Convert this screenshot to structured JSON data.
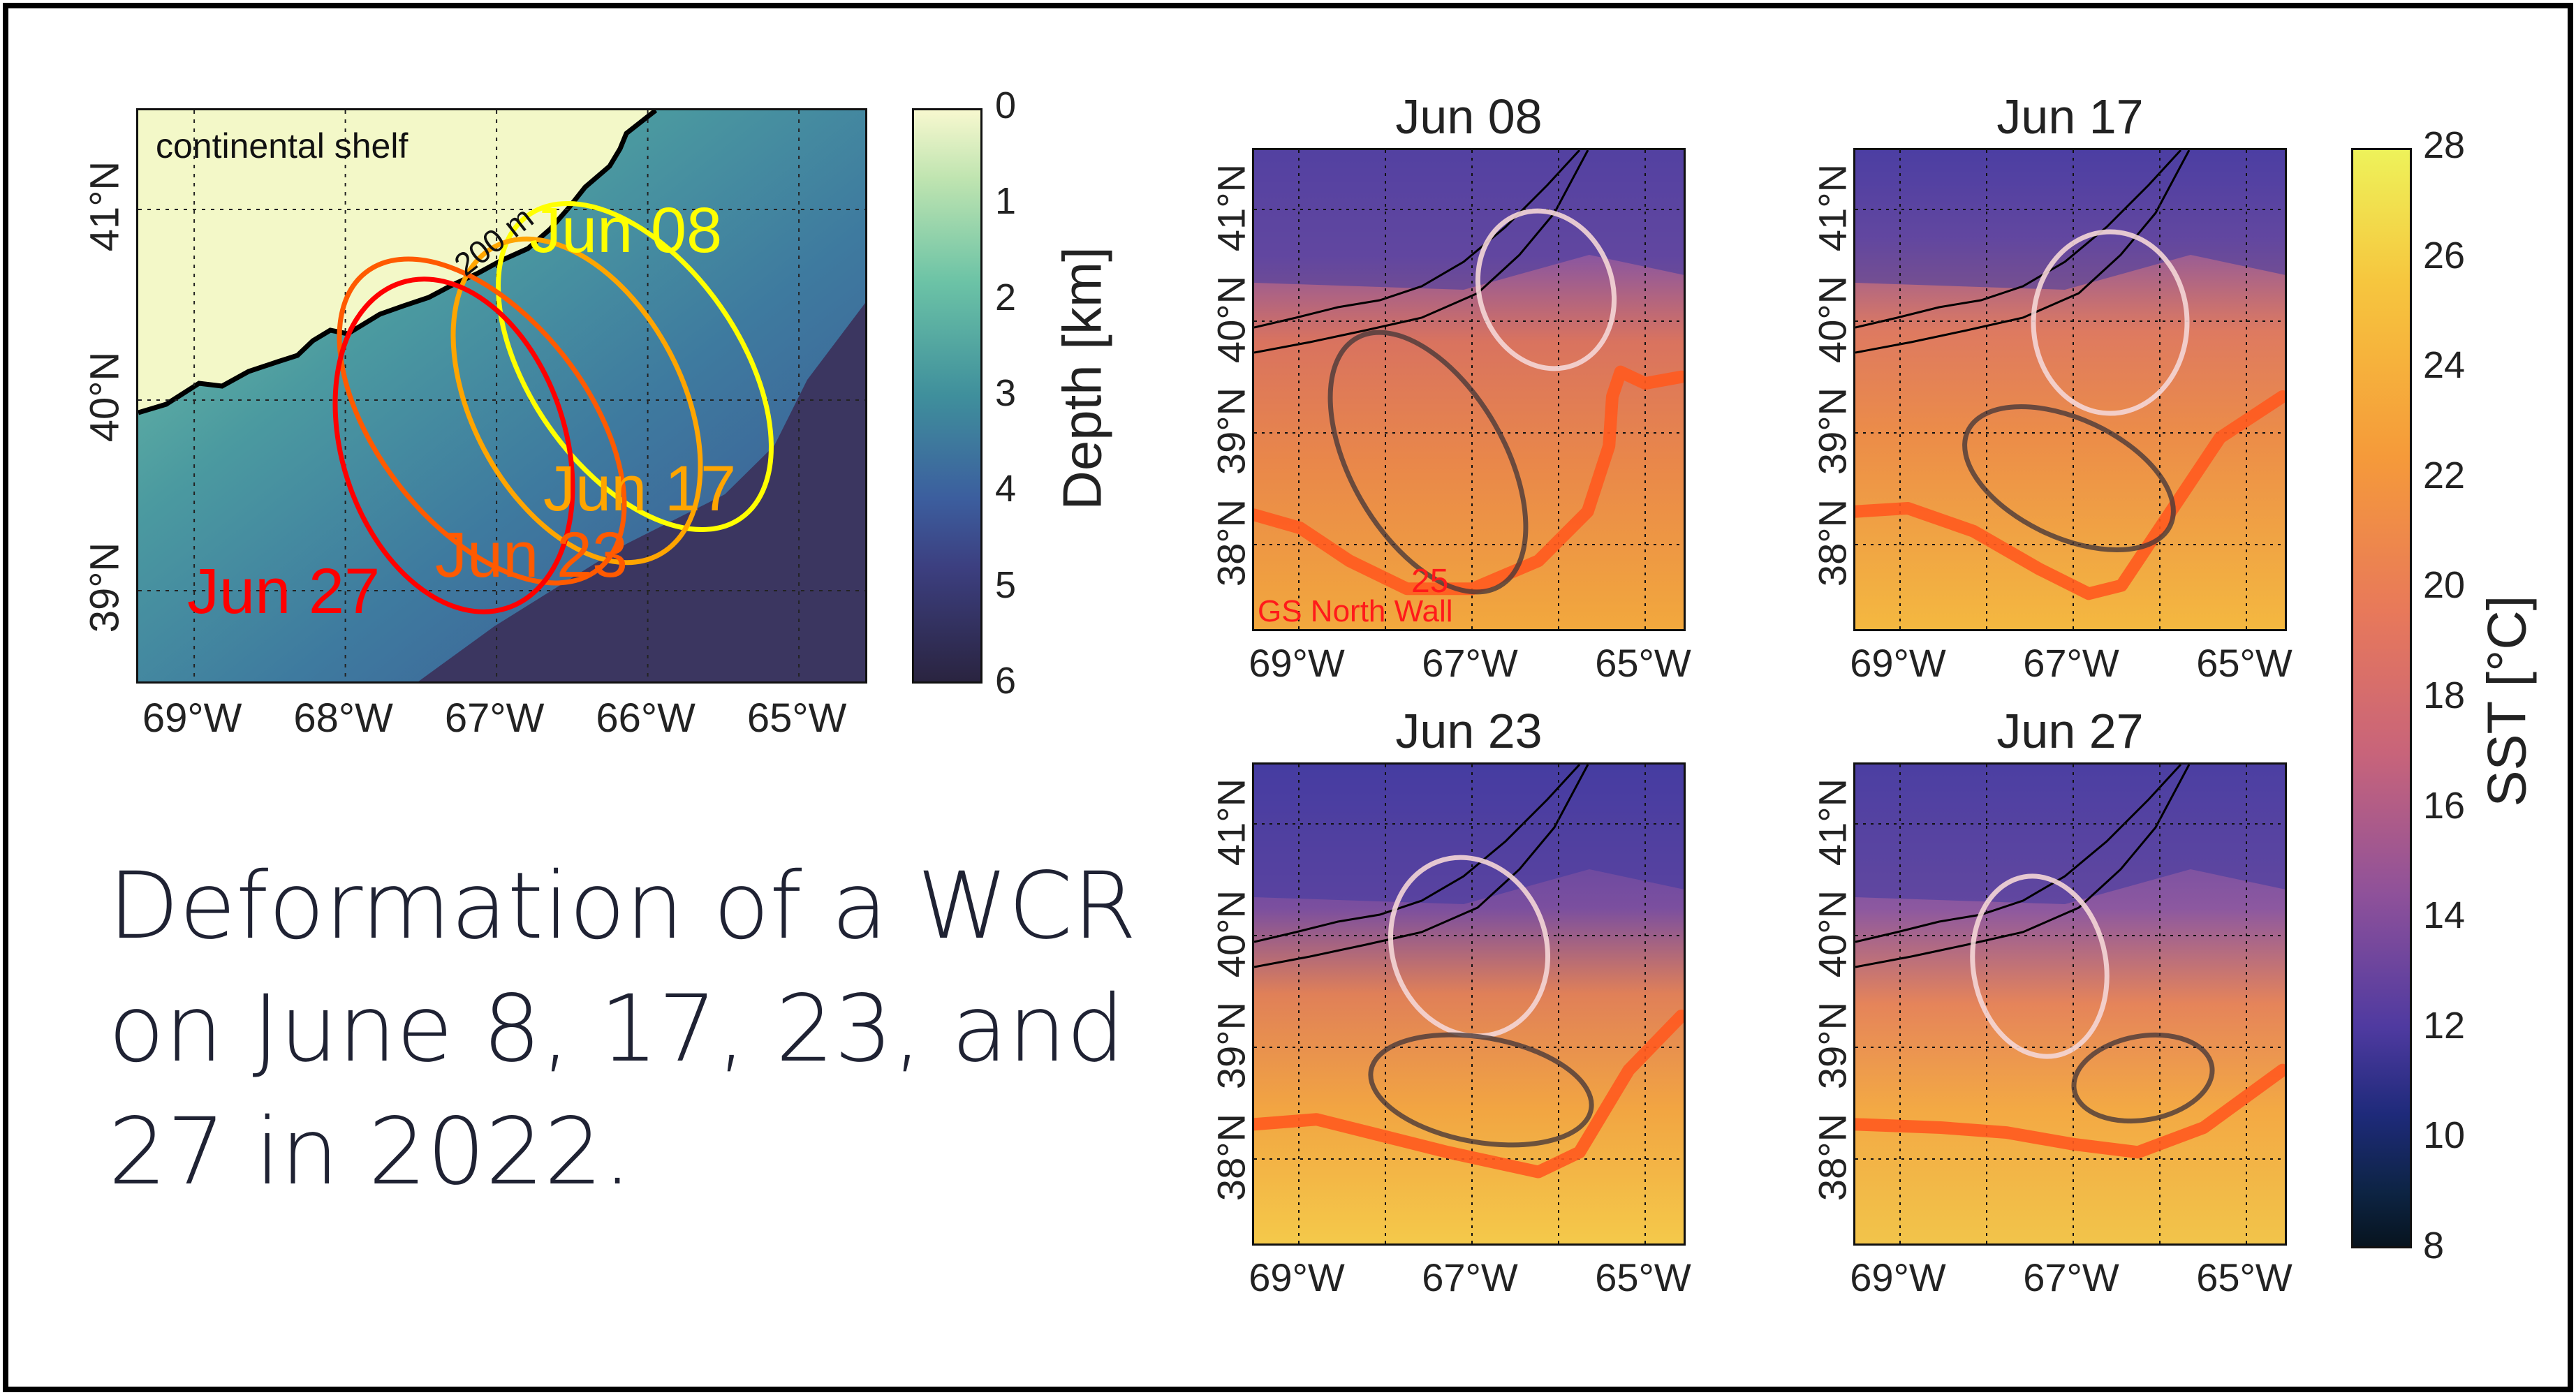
{
  "bathymetry_map": {
    "shelf_label": "continental shelf",
    "isobath_label": "200 m",
    "lon_ticks": [
      "69°W",
      "68°W",
      "67°W",
      "66°W",
      "65°W"
    ],
    "lat_ticks": [
      "41°N",
      "40°N",
      "39°N"
    ],
    "eddy_labels": [
      {
        "text": "Jun 08",
        "color": "#ffff00"
      },
      {
        "text": "Jun 17",
        "color": "#ffa500"
      },
      {
        "text": "Jun 23",
        "color": "#ff5a00"
      },
      {
        "text": "Jun 27",
        "color": "#ff0000"
      }
    ],
    "colorbar": {
      "label": "Depth [km]",
      "ticks": [
        "0",
        "1",
        "2",
        "3",
        "4",
        "5",
        "6"
      ]
    }
  },
  "caption": [
    "Deformation of a WCR",
    "on June 8, 17, 23, and",
    "27 in 2022."
  ],
  "sst_maps": {
    "panels": [
      {
        "title": "Jun 08"
      },
      {
        "title": "Jun 17"
      },
      {
        "title": "Jun 23"
      },
      {
        "title": "Jun 27"
      }
    ],
    "lon_ticks": [
      "69°W",
      "67°W",
      "65°W"
    ],
    "lat_ticks": [
      "41°N",
      "40°N",
      "39°N",
      "38°N"
    ],
    "isotherm_label": "25",
    "front_label": "GS North Wall",
    "front_color": "#ff5a1f",
    "colorbar": {
      "label": "SST [°C]",
      "ticks": [
        "28",
        "26",
        "24",
        "22",
        "20",
        "18",
        "16",
        "14",
        "12",
        "10",
        "8"
      ]
    }
  }
}
